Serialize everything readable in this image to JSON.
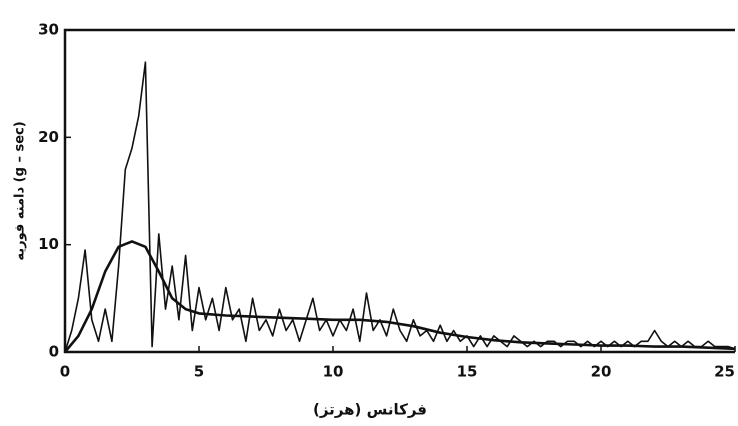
{
  "chart_data": {
    "type": "line",
    "xlabel": "فرکانس (هرتز)",
    "ylabel": "دامنه فوریه (g – sec)",
    "xlim": [
      0,
      25
    ],
    "xticks": [
      0,
      5,
      10,
      15,
      20,
      25
    ],
    "ylim": [
      0,
      30
    ],
    "yticks": [
      0,
      10,
      20,
      30
    ],
    "grid": false,
    "series": [
      {
        "color": "#111111",
        "x": [
          0,
          0.25,
          0.5,
          0.75,
          1,
          1.25,
          1.5,
          1.75,
          2,
          2.25,
          2.5,
          2.75,
          3,
          3.25,
          3.5,
          3.75,
          4,
          4.25,
          4.5,
          4.75,
          5,
          5.25,
          5.5,
          5.75,
          6,
          6.25,
          6.5,
          6.75,
          7,
          7.25,
          7.5,
          7.75,
          8,
          8.25,
          8.5,
          8.75,
          9,
          9.25,
          9.5,
          9.75,
          10,
          10.25,
          10.5,
          10.75,
          11,
          11.25,
          11.5,
          11.75,
          12,
          12.25,
          12.5,
          12.75,
          13,
          13.25,
          13.5,
          13.75,
          14,
          14.25,
          14.5,
          14.75,
          15,
          15.25,
          15.5,
          15.75,
          16,
          16.25,
          16.5,
          16.75,
          17,
          17.25,
          17.5,
          17.75,
          18,
          18.25,
          18.5,
          18.75,
          19,
          19.25,
          19.5,
          19.75,
          20,
          20.25,
          20.5,
          20.75,
          21,
          21.25,
          21.5,
          21.75,
          22,
          22.25,
          22.5,
          22.75,
          23,
          23.25,
          23.5,
          23.75,
          24,
          24.25,
          24.5,
          24.75,
          25
        ],
        "values": [
          0,
          2,
          5,
          9.5,
          3,
          1,
          4,
          1,
          8,
          17,
          19,
          22,
          27,
          0.5,
          11,
          4,
          8,
          3,
          9,
          2,
          6,
          3,
          5,
          2,
          6,
          3,
          4,
          1,
          5,
          2,
          3,
          1.5,
          4,
          2,
          3,
          1,
          3,
          5,
          2,
          3,
          1.5,
          3,
          2,
          4,
          1,
          5.5,
          2,
          3,
          1.5,
          4,
          2,
          1,
          3,
          1.5,
          2,
          1,
          2.5,
          1,
          2,
          1,
          1.5,
          0.5,
          1.5,
          0.5,
          1.5,
          1,
          0.5,
          1.5,
          1,
          0.5,
          1,
          0.5,
          1,
          1,
          0.5,
          1,
          1,
          0.5,
          1,
          0.5,
          1,
          0.5,
          1,
          0.5,
          1,
          0.5,
          1,
          1,
          2,
          1,
          0.5,
          1,
          0.5,
          1,
          0.5,
          0.5,
          1,
          0.5,
          0.5,
          0.5,
          0.3
        ]
      },
      {
        "color": "#111111",
        "x": [
          0,
          0.5,
          1,
          1.5,
          2,
          2.5,
          3,
          3.5,
          4,
          4.5,
          5,
          6,
          7,
          8,
          9,
          10,
          11,
          12,
          13,
          14,
          15,
          16,
          17,
          18,
          19,
          20,
          21,
          22,
          23,
          24,
          25
        ],
        "values": [
          0,
          1.5,
          4,
          7.5,
          9.8,
          10.3,
          9.8,
          7.5,
          5,
          4,
          3.6,
          3.4,
          3.3,
          3.2,
          3.1,
          3,
          3,
          2.8,
          2.4,
          1.8,
          1.4,
          1.1,
          0.9,
          0.8,
          0.7,
          0.6,
          0.6,
          0.5,
          0.5,
          0.4,
          0.3
        ]
      }
    ]
  }
}
